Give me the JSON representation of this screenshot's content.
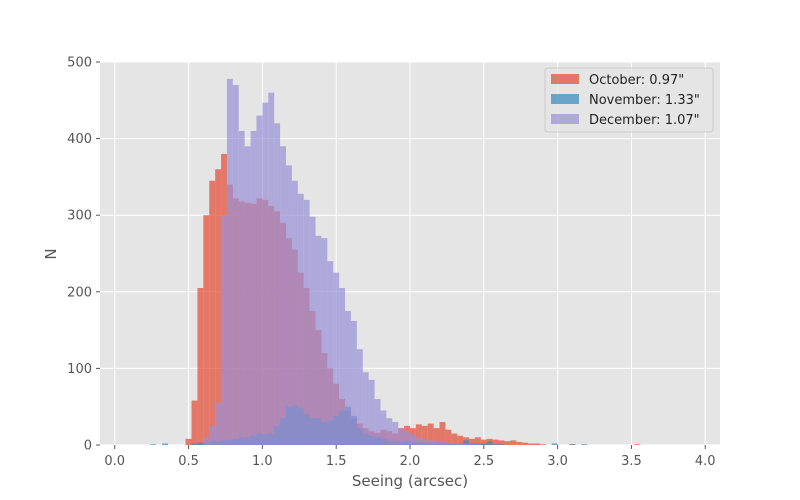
{
  "chart_data": {
    "type": "bar",
    "xlabel": "Seeing (arcsec)",
    "ylabel": "N",
    "xlim": [
      -0.1,
      4.1
    ],
    "ylim": [
      0,
      500
    ],
    "xticks": [
      "0.0",
      "0.5",
      "1.0",
      "1.5",
      "2.0",
      "2.5",
      "3.0",
      "3.5",
      "4.0"
    ],
    "yticks": [
      "0",
      "100",
      "200",
      "300",
      "400",
      "500"
    ],
    "grid": true,
    "legend_position": "top-right",
    "bin_width": 0.04,
    "series": [
      {
        "name": "October: 0.97\"",
        "color": "#E24A33",
        "bins": [
          [
            0.48,
            8
          ],
          [
            0.52,
            58
          ],
          [
            0.56,
            205
          ],
          [
            0.6,
            300
          ],
          [
            0.64,
            345
          ],
          [
            0.68,
            360
          ],
          [
            0.72,
            380
          ],
          [
            0.76,
            340
          ],
          [
            0.8,
            322
          ],
          [
            0.84,
            318
          ],
          [
            0.88,
            316
          ],
          [
            0.92,
            315
          ],
          [
            0.96,
            322
          ],
          [
            1.0,
            320
          ],
          [
            1.04,
            312
          ],
          [
            1.08,
            305
          ],
          [
            1.12,
            290
          ],
          [
            1.16,
            270
          ],
          [
            1.2,
            255
          ],
          [
            1.24,
            225
          ],
          [
            1.28,
            205
          ],
          [
            1.32,
            175
          ],
          [
            1.36,
            150
          ],
          [
            1.4,
            120
          ],
          [
            1.44,
            100
          ],
          [
            1.48,
            80
          ],
          [
            1.52,
            60
          ],
          [
            1.56,
            45
          ],
          [
            1.6,
            35
          ],
          [
            1.64,
            28
          ],
          [
            1.68,
            22
          ],
          [
            1.72,
            18
          ],
          [
            1.76,
            16
          ],
          [
            1.8,
            20
          ],
          [
            1.84,
            18
          ],
          [
            1.88,
            15
          ],
          [
            1.92,
            22
          ],
          [
            1.96,
            25
          ],
          [
            2.0,
            22
          ],
          [
            2.04,
            27
          ],
          [
            2.08,
            25
          ],
          [
            2.12,
            28
          ],
          [
            2.16,
            22
          ],
          [
            2.2,
            30
          ],
          [
            2.24,
            20
          ],
          [
            2.28,
            15
          ],
          [
            2.32,
            12
          ],
          [
            2.36,
            10
          ],
          [
            2.4,
            8
          ],
          [
            2.44,
            10
          ],
          [
            2.48,
            7
          ],
          [
            2.52,
            8
          ],
          [
            2.56,
            7
          ],
          [
            2.6,
            6
          ],
          [
            2.64,
            5
          ],
          [
            2.68,
            6
          ],
          [
            2.72,
            4
          ],
          [
            2.76,
            3
          ],
          [
            2.8,
            2
          ],
          [
            2.84,
            2
          ],
          [
            2.88,
            1
          ],
          [
            3.08,
            1
          ],
          [
            3.52,
            1
          ]
        ]
      },
      {
        "name": "November: 1.33\"",
        "color": "#348ABD",
        "bins": [
          [
            0.24,
            1
          ],
          [
            0.32,
            2
          ],
          [
            0.52,
            2
          ],
          [
            0.56,
            3
          ],
          [
            0.6,
            3
          ],
          [
            0.64,
            5
          ],
          [
            0.68,
            5
          ],
          [
            0.72,
            6
          ],
          [
            0.76,
            7
          ],
          [
            0.8,
            8
          ],
          [
            0.84,
            10
          ],
          [
            0.88,
            10
          ],
          [
            0.92,
            12
          ],
          [
            0.96,
            15
          ],
          [
            1.0,
            14
          ],
          [
            1.04,
            15
          ],
          [
            1.08,
            25
          ],
          [
            1.12,
            35
          ],
          [
            1.16,
            50
          ],
          [
            1.2,
            52
          ],
          [
            1.24,
            48
          ],
          [
            1.28,
            40
          ],
          [
            1.32,
            35
          ],
          [
            1.36,
            35
          ],
          [
            1.4,
            30
          ],
          [
            1.44,
            32
          ],
          [
            1.48,
            38
          ],
          [
            1.52,
            45
          ],
          [
            1.56,
            50
          ],
          [
            1.6,
            38
          ],
          [
            1.64,
            22
          ],
          [
            1.68,
            15
          ],
          [
            1.72,
            12
          ],
          [
            1.76,
            10
          ],
          [
            1.8,
            8
          ],
          [
            1.84,
            5
          ],
          [
            1.88,
            5
          ],
          [
            1.92,
            4
          ],
          [
            1.96,
            5
          ],
          [
            2.0,
            4
          ],
          [
            2.04,
            3
          ],
          [
            2.08,
            3
          ],
          [
            2.12,
            2
          ],
          [
            2.16,
            2
          ],
          [
            2.2,
            3
          ],
          [
            2.24,
            2
          ],
          [
            2.28,
            2
          ],
          [
            2.32,
            2
          ],
          [
            2.36,
            6
          ],
          [
            2.4,
            2
          ],
          [
            2.44,
            2
          ],
          [
            2.48,
            2
          ],
          [
            2.52,
            5
          ],
          [
            2.56,
            1
          ],
          [
            2.6,
            1
          ],
          [
            2.96,
            2
          ],
          [
            3.08,
            1
          ],
          [
            3.16,
            1
          ]
        ]
      },
      {
        "name": "December: 1.07\"",
        "color": "#988ED5",
        "bins": [
          [
            0.6,
            10
          ],
          [
            0.64,
            25
          ],
          [
            0.68,
            55
          ],
          [
            0.72,
            300
          ],
          [
            0.76,
            478
          ],
          [
            0.8,
            470
          ],
          [
            0.84,
            410
          ],
          [
            0.88,
            390
          ],
          [
            0.92,
            410
          ],
          [
            0.96,
            430
          ],
          [
            1.0,
            447
          ],
          [
            1.04,
            460
          ],
          [
            1.08,
            420
          ],
          [
            1.12,
            390
          ],
          [
            1.16,
            365
          ],
          [
            1.2,
            345
          ],
          [
            1.24,
            328
          ],
          [
            1.28,
            320
          ],
          [
            1.32,
            298
          ],
          [
            1.36,
            273
          ],
          [
            1.4,
            270
          ],
          [
            1.44,
            240
          ],
          [
            1.48,
            225
          ],
          [
            1.52,
            205
          ],
          [
            1.56,
            175
          ],
          [
            1.6,
            162
          ],
          [
            1.64,
            125
          ],
          [
            1.68,
            95
          ],
          [
            1.72,
            85
          ],
          [
            1.76,
            60
          ],
          [
            1.8,
            45
          ],
          [
            1.84,
            35
          ],
          [
            1.88,
            30
          ],
          [
            1.92,
            22
          ],
          [
            1.96,
            18
          ],
          [
            2.0,
            14
          ],
          [
            2.04,
            10
          ],
          [
            2.08,
            8
          ],
          [
            2.12,
            6
          ],
          [
            2.16,
            5
          ],
          [
            2.2,
            4
          ],
          [
            2.24,
            3
          ],
          [
            2.28,
            3
          ],
          [
            2.32,
            2
          ],
          [
            2.36,
            2
          ],
          [
            2.4,
            1
          ],
          [
            2.44,
            1
          ]
        ]
      }
    ]
  }
}
